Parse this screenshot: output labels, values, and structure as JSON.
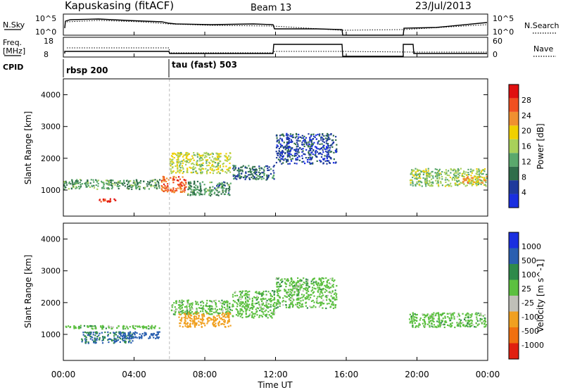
{
  "header": {
    "station": "Kapuskasing (fitACF)",
    "beam": "Beam 13",
    "date": "23/Jul/2013"
  },
  "strips": {
    "nsky_label": "N.Sky",
    "nsky_ticks": [
      "10^5",
      "10^0"
    ],
    "nsearch_label": "N.Search",
    "nsearch_ticks": [
      "10^5",
      "10^0"
    ],
    "freq_label_1": "Freq.",
    "freq_label_2": "[MHz]",
    "freq_ticks": [
      "18",
      "8"
    ],
    "nave_label": "Nave",
    "nave_ticks": [
      "60",
      "0"
    ],
    "cpid_label": "CPID",
    "cpid_segments": [
      {
        "label": "rbsp 200",
        "start_hour": 0
      },
      {
        "label": "tau (fast) 503",
        "start_hour": 6
      }
    ]
  },
  "colors": {
    "power_scale": [
      "#1a2fe0",
      "#1f3a9c",
      "#2f6d4a",
      "#5aa86c",
      "#a8d05a",
      "#f0d000",
      "#f09030",
      "#f05020",
      "#e01010"
    ],
    "velocity_scale": [
      "#1a2fe0",
      "#2a5fb0",
      "#2f8a4a",
      "#5cc040",
      "#c0c0b8",
      "#f0a020",
      "#f07010",
      "#e02010"
    ],
    "accent": "#000000"
  },
  "chart_data": [
    {
      "type": "heatmap",
      "title": "",
      "xlabel": "",
      "ylabel": "Slant Range [km]",
      "xlim": [
        "00:00",
        "24:00"
      ],
      "ylim": [
        180,
        4500
      ],
      "y_ticks": [
        "1000",
        "2000",
        "3000",
        "4000"
      ],
      "x_ticks": [
        "00:00",
        "04:00",
        "08:00",
        "12:00",
        "16:00",
        "20:00",
        "00:00"
      ],
      "colorbar": {
        "label": "Power [dB]",
        "ticks": [
          "28",
          "24",
          "20",
          "16",
          "12",
          "8",
          "4"
        ],
        "range": [
          0,
          30
        ]
      },
      "regions": [
        {
          "t": [
            0.0,
            5.5
          ],
          "r": [
            1000,
            1350
          ],
          "value": 11
        },
        {
          "t": [
            2.0,
            3.0
          ],
          "r": [
            600,
            750
          ],
          "value": 27
        },
        {
          "t": [
            5.5,
            7.0
          ],
          "r": [
            900,
            1450
          ],
          "value": 24
        },
        {
          "t": [
            6.0,
            9.5
          ],
          "r": [
            1500,
            2200
          ],
          "value": 16
        },
        {
          "t": [
            7.0,
            9.5
          ],
          "r": [
            800,
            1300
          ],
          "value": 10
        },
        {
          "t": [
            9.5,
            12.0
          ],
          "r": [
            1300,
            1800
          ],
          "value": 8
        },
        {
          "t": [
            12.0,
            15.5
          ],
          "r": [
            1800,
            2800
          ],
          "value": 5
        },
        {
          "t": [
            19.5,
            24.0
          ],
          "r": [
            1100,
            1700
          ],
          "value": 14
        },
        {
          "t": [
            22.5,
            24.0
          ],
          "r": [
            1200,
            1450
          ],
          "value": 20
        }
      ]
    },
    {
      "type": "heatmap",
      "title": "",
      "xlabel": "Time UT",
      "ylabel": "Slant Range [km]",
      "xlim": [
        "00:00",
        "24:00"
      ],
      "ylim": [
        180,
        4500
      ],
      "y_ticks": [
        "1000",
        "2000",
        "3000",
        "4000"
      ],
      "x_ticks": [
        "00:00",
        "04:00",
        "08:00",
        "12:00",
        "16:00",
        "20:00",
        "00:00"
      ],
      "colorbar": {
        "label": "Velocity [m s^-1]",
        "ticks": [
          "1000",
          "500",
          "100",
          "25",
          "-25",
          "-100",
          "-500",
          "-1000"
        ],
        "range": [
          -1000,
          1000
        ]
      },
      "regions": [
        {
          "t": [
            0.0,
            5.5
          ],
          "r": [
            1150,
            1300
          ],
          "value": 0
        },
        {
          "t": [
            1.0,
            4.0
          ],
          "r": [
            700,
            1100
          ],
          "value": 100
        },
        {
          "t": [
            3.0,
            5.5
          ],
          "r": [
            850,
            1100
          ],
          "value": 200
        },
        {
          "t": [
            6.0,
            9.5
          ],
          "r": [
            1600,
            2100
          ],
          "value": 0
        },
        {
          "t": [
            6.5,
            9.5
          ],
          "r": [
            1200,
            1700
          ],
          "value": -300
        },
        {
          "t": [
            9.5,
            12.0
          ],
          "r": [
            1500,
            2400
          ],
          "value": 0
        },
        {
          "t": [
            12.0,
            15.5
          ],
          "r": [
            1800,
            2800
          ],
          "value": 0
        },
        {
          "t": [
            19.5,
            24.0
          ],
          "r": [
            1200,
            1700
          ],
          "value": 0
        }
      ]
    }
  ]
}
